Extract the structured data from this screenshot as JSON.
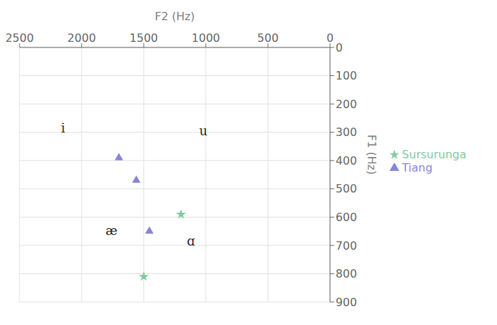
{
  "chart_data": {
    "type": "scatter",
    "xlabel": "F2 (Hz)",
    "ylabel": "F1 (Hz)",
    "xlim": [
      2500,
      0
    ],
    "ylim": [
      900,
      0
    ],
    "xticks": [
      2500,
      2000,
      1500,
      1000,
      500,
      0
    ],
    "yticks": [
      0,
      100,
      200,
      300,
      400,
      500,
      600,
      700,
      800,
      900
    ],
    "grid": true,
    "legend": "right",
    "series": [
      {
        "name": "Tiang",
        "marker": "triangle",
        "x": [
          1700,
          1560,
          1455
        ],
        "values": [
          390,
          470,
          650
        ]
      },
      {
        "name": "Sursurunga",
        "marker": "star",
        "x": [
          1200,
          1500
        ],
        "values": [
          590,
          810
        ]
      }
    ],
    "annotations": [
      {
        "text": "i",
        "x": 2150,
        "y": 285
      },
      {
        "text": "u",
        "x": 1020,
        "y": 295
      },
      {
        "text": "æ",
        "x": 1760,
        "y": 648
      },
      {
        "text": "ɑ",
        "x": 1120,
        "y": 685
      }
    ]
  }
}
